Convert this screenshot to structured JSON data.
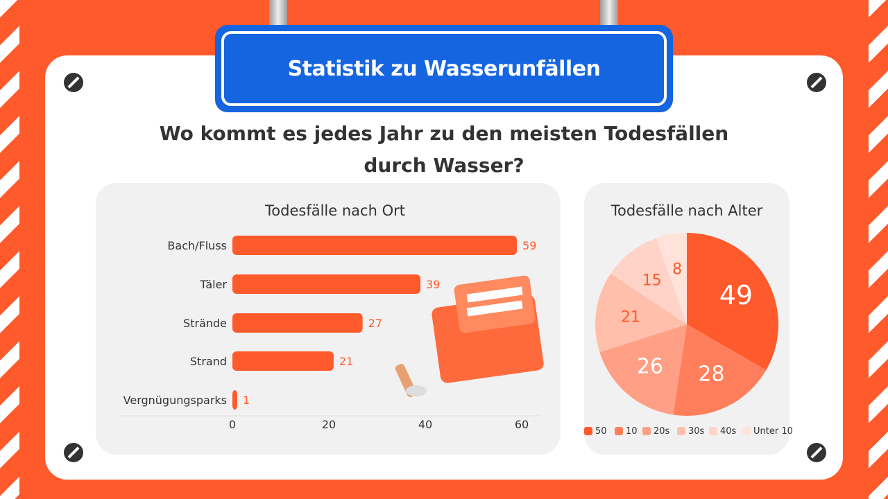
{
  "banner": {
    "title": "Statistik zu Wasserunfällen"
  },
  "question": "Wo kommt es jedes Jahr zu den meisten Todesfällen durch Wasser?",
  "colors": {
    "accent": "#ff5a2c",
    "banner": "#1565e0"
  },
  "chart_data": [
    {
      "type": "bar",
      "orientation": "horizontal",
      "title": "Todesfälle nach Ort",
      "categories": [
        "Bach/Fluss",
        "Täler",
        "Strände",
        "Strand",
        "Vergnügungsparks"
      ],
      "values": [
        59,
        39,
        27,
        21,
        1
      ],
      "xlim": [
        0,
        60
      ],
      "xticks": [
        0,
        20,
        40,
        60
      ],
      "color": "#ff5a2c",
      "grid": false
    },
    {
      "type": "pie",
      "title": "Todesfälle nach Alter",
      "labels": [
        "50",
        "10",
        "20s",
        "30s",
        "40s",
        "Unter 10"
      ],
      "values": [
        49,
        28,
        26,
        21,
        15,
        8
      ],
      "colors": [
        "#ff5a2c",
        "#ff7f5c",
        "#ff9f85",
        "#ffbfab",
        "#ffd3c7",
        "#ffe3db"
      ],
      "legend": "bottom"
    }
  ]
}
